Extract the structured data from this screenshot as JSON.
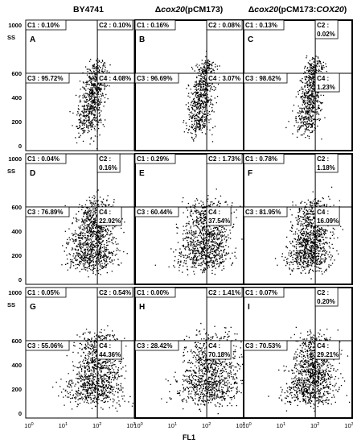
{
  "chart_data": {
    "type": "scatter",
    "xlabel": "FL1",
    "ylabel": "SS",
    "x_scale": "log",
    "x_ticks": [
      "10",
      "10",
      "10",
      "10"
    ],
    "x_tick_exponents": [
      "0",
      "1",
      "2",
      "3"
    ],
    "y_ticks": [
      "0",
      "200",
      "400",
      "600",
      "1000"
    ],
    "ylim": [
      0,
      1000
    ],
    "columns": [
      {
        "text": "BY4741"
      },
      {
        "prefix": "Δ",
        "italic": "cox20",
        "suffix": "(pCM173)"
      },
      {
        "prefix": "Δ",
        "italic": "cox20",
        "suffix": "(pCM173:",
        "italic2": "COX20",
        "suffix2": ")"
      }
    ],
    "panels": [
      {
        "label": "A",
        "quadrants": {
          "C1": "0.10%",
          "C2": "0.10%",
          "C3": "95.72%",
          "C4": "4.08%"
        }
      },
      {
        "label": "B",
        "quadrants": {
          "C1": "0.16%",
          "C2": "0.08%",
          "C3": "96.69%",
          "C4": "3.07%"
        }
      },
      {
        "label": "C",
        "quadrants": {
          "C1": "0.13%",
          "C2": "0.02%",
          "C3": "98.62%",
          "C4": "1.23%"
        }
      },
      {
        "label": "D",
        "quadrants": {
          "C1": "0.04%",
          "C2": "0.16%",
          "C3": "76.89%",
          "C4": "22.92%"
        }
      },
      {
        "label": "E",
        "quadrants": {
          "C1": "0.29%",
          "C2": "1.73%",
          "C3": "60.44%",
          "C4": "37.54%"
        }
      },
      {
        "label": "F",
        "quadrants": {
          "C1": "0.78%",
          "C2": "1.18%",
          "C3": "81.95%",
          "C4": "16.09%"
        }
      },
      {
        "label": "G",
        "quadrants": {
          "C1": "0.05%",
          "C2": "0.54%",
          "C3": "55.06%",
          "C4": "44.36%"
        }
      },
      {
        "label": "H",
        "quadrants": {
          "C1": "0.00%",
          "C2": "1.41%",
          "C3": "28.42%",
          "C4": "70.18%"
        }
      },
      {
        "label": "I",
        "quadrants": {
          "C1": "0.07%",
          "C2": "0.20%",
          "C3": "70.53%",
          "C4": "29.21%"
        }
      }
    ],
    "gate_lines": {
      "y": 600,
      "x_decade": 1.9
    },
    "grid": false,
    "legend": "none",
    "colors": {
      "points": "#000000",
      "frame": "#000000",
      "background": "#ffffff"
    }
  }
}
